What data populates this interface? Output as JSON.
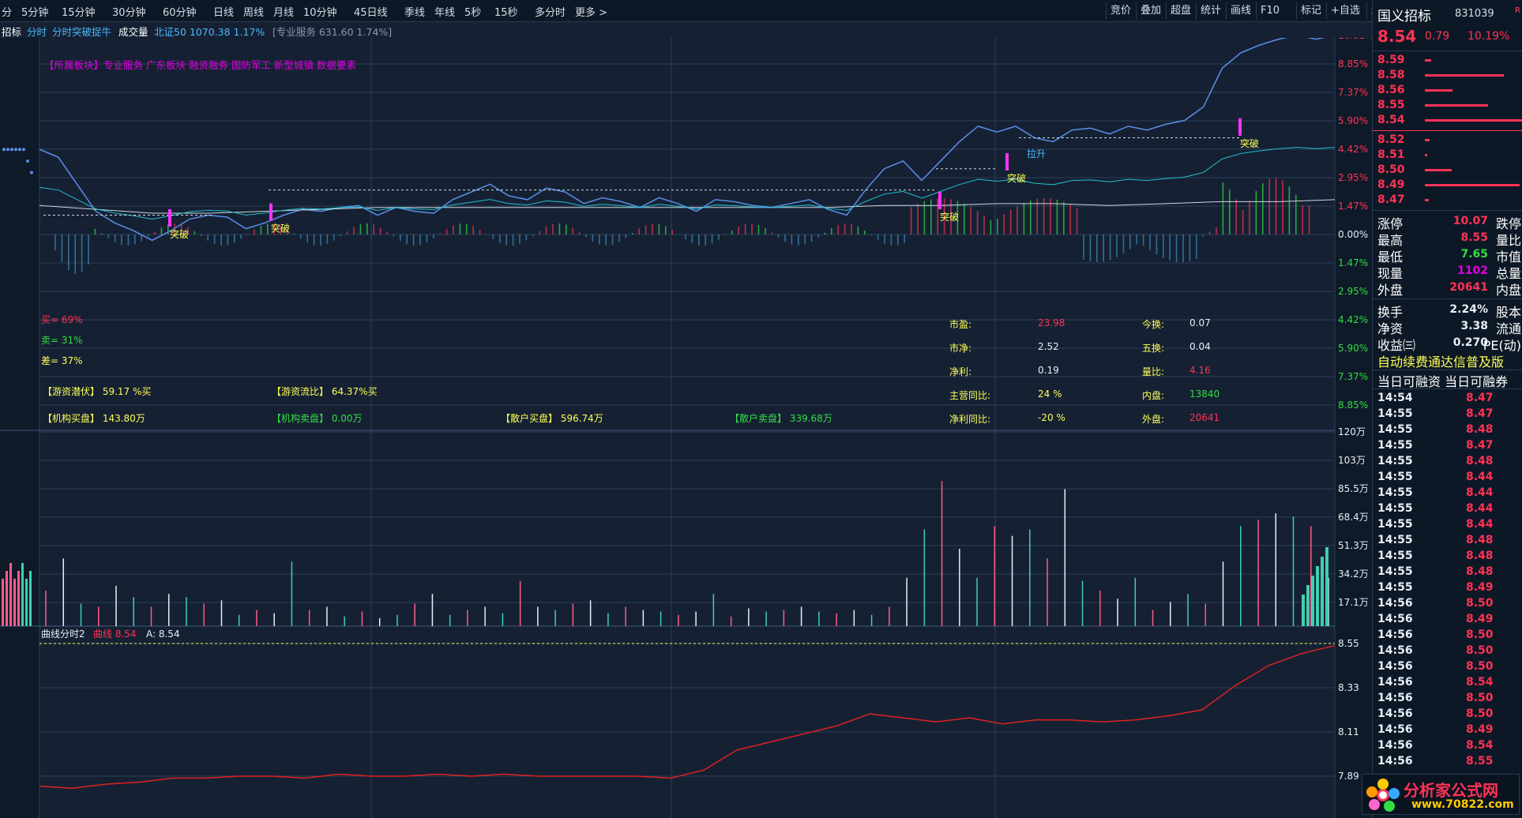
{
  "toolbar": {
    "left": [
      "分",
      "5分钟",
      "15分钟",
      "30分钟",
      "60分钟",
      "日线",
      "周线",
      "月线",
      "10分钟",
      "45日线",
      "季线",
      "年线",
      "5秒",
      "15秒",
      "多分时",
      "更多 >"
    ],
    "right": [
      "竞价",
      "叠加",
      "超盘",
      "统计",
      "画线",
      "F10",
      "标记",
      "+自选",
      "返回"
    ]
  },
  "subheader": {
    "name": "招标",
    "tab1": "分时",
    "tab2": "分时突破捉牛",
    "vol": "成交量",
    "index1": "北证50 1070.38 1.17%",
    "index2": "[专业服务 631.60 1.74%]"
  },
  "sector_line": "【所属板块】专业服务 广东板块 融资融券 国防军工 新型城镇 数据要素",
  "signals": {
    "breakout": "突破",
    "pull": "拉升"
  },
  "ratios": [
    {
      "label": "买= 69%",
      "color": "#ff3355"
    },
    {
      "label": "卖= 31%",
      "color": "#33dd44"
    },
    {
      "label": "差= 37%",
      "color": "#ffff55"
    }
  ],
  "capital": [
    {
      "label": "【游资潜伏】",
      "value": "59.17 %买"
    },
    {
      "label": "【游资流比】",
      "value": "64.37%买"
    }
  ],
  "flows": [
    {
      "label": "【机构买盘】",
      "value": "143.80万",
      "color": "#ffff55"
    },
    {
      "label": "【机构卖盘】",
      "value": "0.00万",
      "color": "#33dd44"
    },
    {
      "label": "【散户买盘】",
      "value": "596.74万",
      "color": "#ffff55"
    },
    {
      "label": "【散户卖盘】",
      "value": "339.68万",
      "color": "#33dd44"
    }
  ],
  "fundamentals": [
    {
      "label": "市盈:",
      "value": "23.98",
      "vcolor": "#ff3355",
      "label2": "今换:",
      "value2": "0.07",
      "v2color": "#e8eef6"
    },
    {
      "label": "市净:",
      "value": "2.52",
      "vcolor": "#e8eef6",
      "label2": "五换:",
      "value2": "0.04",
      "v2color": "#e8eef6"
    },
    {
      "label": "净利:",
      "value": "0.19",
      "vcolor": "#e8eef6",
      "label2": "量比:",
      "value2": "4.16",
      "v2color": "#ff3355"
    },
    {
      "label": "主营同比:",
      "value": "24 %",
      "vcolor": "#ffff55",
      "label2": "内盘:",
      "value2": "13840",
      "v2color": "#33dd44"
    },
    {
      "label": "净利同比:",
      "value": "-20 %",
      "vcolor": "#ffff55",
      "label2": "外盘:",
      "value2": "20641",
      "v2color": "#ff3355"
    }
  ],
  "sub_indicator": {
    "name": "曲线分时2",
    "series_label": "曲线",
    "series_value": "8.54",
    "a_label": "A: 8.54"
  },
  "chart_data": {
    "type": "line",
    "price_axis_right_pct": [
      "10.32%",
      "8.85%",
      "7.37%",
      "5.90%",
      "4.42%",
      "2.95%",
      "1.47%",
      "0.00%",
      "1.47%",
      "2.95%",
      "4.42%",
      "5.90%",
      "7.37%",
      "8.85%"
    ],
    "volume_axis": [
      "120万",
      "103万",
      "85.5万",
      "68.4万",
      "51.3万",
      "34.2万",
      "17.1万"
    ],
    "curve_axis": [
      "8.55",
      "8.33",
      "8.11",
      "7.89"
    ],
    "price_pct_series": [
      4.4,
      4.0,
      2.6,
      1.2,
      0.6,
      0.2,
      -0.3,
      0.2,
      0.8,
      1.0,
      0.9,
      0.3,
      0.6,
      1.0,
      1.3,
      1.2,
      1.4,
      1.5,
      1.0,
      1.4,
      1.2,
      1.1,
      1.8,
      2.2,
      2.6,
      2.0,
      1.8,
      2.4,
      2.2,
      1.6,
      1.9,
      1.7,
      1.4,
      1.9,
      1.6,
      1.2,
      1.8,
      1.7,
      1.5,
      1.4,
      1.6,
      1.8,
      1.3,
      1.0,
      2.3,
      3.4,
      3.8,
      2.8,
      3.8,
      4.8,
      5.6,
      5.3,
      5.6,
      5.0,
      4.8,
      5.4,
      5.5,
      5.2,
      5.6,
      5.4,
      5.7,
      5.9,
      6.6,
      8.6,
      9.4,
      9.8,
      10.1,
      10.3,
      10.1,
      10.3
    ],
    "avg_pct_series": [
      1.5,
      1.3,
      1.1,
      1.1,
      1.2,
      1.3,
      1.4,
      1.4,
      1.4,
      1.4,
      1.4,
      1.4,
      1.4,
      1.4,
      1.4,
      1.5,
      1.5,
      1.6,
      1.6,
      1.5,
      1.6,
      1.7,
      1.7,
      1.8
    ],
    "curve_series": [
      7.84,
      7.83,
      7.85,
      7.86,
      7.88,
      7.88,
      7.89,
      7.89,
      7.88,
      7.9,
      7.89,
      7.89,
      7.9,
      7.89,
      7.9,
      7.89,
      7.89,
      7.89,
      7.89,
      7.88,
      7.92,
      8.02,
      8.06,
      8.1,
      8.14,
      8.2,
      8.18,
      8.16,
      8.18,
      8.15,
      8.17,
      8.17,
      8.16,
      8.17,
      8.19,
      8.22,
      8.34,
      8.44,
      8.5,
      8.54
    ],
    "volume_series": [
      22,
      42,
      14,
      12,
      25,
      18,
      12,
      20,
      18,
      14,
      16,
      7,
      10,
      8,
      40,
      10,
      12,
      6,
      9,
      5,
      7,
      14,
      20,
      7,
      10,
      12,
      8,
      28,
      12,
      10,
      14,
      16,
      8,
      12,
      10,
      9,
      7,
      9,
      20,
      6,
      11,
      9,
      10,
      12,
      9,
      8,
      10,
      7,
      12,
      30,
      60,
      90,
      48,
      30,
      62,
      56,
      60,
      42,
      85,
      28,
      22,
      17,
      30,
      10,
      15,
      20,
      14,
      40,
      62,
      66,
      70,
      68,
      62,
      30
    ],
    "xlim": [
      0,
      240
    ],
    "ylim_pct": [
      -10.32,
      10.32
    ]
  },
  "panel": {
    "name": "国义招标",
    "code": "831039",
    "flag": "R",
    "price": "8.54",
    "change": "0.79",
    "pct": "10.19%",
    "asks": [
      {
        "p": "8.59",
        "w": 8
      },
      {
        "p": "8.58",
        "w": 100
      },
      {
        "p": "8.56",
        "w": 35
      },
      {
        "p": "8.55",
        "w": 80
      },
      {
        "p": "8.54",
        "w": 124
      }
    ],
    "bids": [
      {
        "p": "8.52",
        "w": 6
      },
      {
        "p": "8.51",
        "w": 3
      },
      {
        "p": "8.50",
        "w": 34
      },
      {
        "p": "8.49",
        "w": 120
      },
      {
        "p": "8.47",
        "w": 5
      }
    ],
    "stats": [
      {
        "l": "涨停",
        "v": "10.07",
        "c": "#ff3355",
        "r": "跌停"
      },
      {
        "l": "最高",
        "v": "8.55",
        "c": "#ff3355",
        "r": "量比"
      },
      {
        "l": "最低",
        "v": "7.65",
        "c": "#33dd44",
        "r": "市值"
      },
      {
        "l": "现量",
        "v": "1102",
        "c": "#e000e0",
        "r": "总量"
      },
      {
        "l": "外盘",
        "v": "20641",
        "c": "#ff3355",
        "r": "内盘"
      }
    ],
    "stats2": [
      {
        "l": "换手",
        "v": "2.24%",
        "c": "#e8eef6",
        "r": "股本"
      },
      {
        "l": "净资",
        "v": "3.38",
        "c": "#e8eef6",
        "r": "流通"
      },
      {
        "l": "收益㈢",
        "v": "0.270",
        "c": "#e8eef6",
        "r": "PE(动)"
      }
    ],
    "notice": "自动续费通达信普及版",
    "margin": "当日可融资 当日可融券",
    "ticks": [
      {
        "t": "14:54",
        "p": "8.47"
      },
      {
        "t": "14:55",
        "p": "8.47"
      },
      {
        "t": "14:55",
        "p": "8.48"
      },
      {
        "t": "14:55",
        "p": "8.47"
      },
      {
        "t": "14:55",
        "p": "8.48"
      },
      {
        "t": "14:55",
        "p": "8.44"
      },
      {
        "t": "14:55",
        "p": "8.44"
      },
      {
        "t": "14:55",
        "p": "8.44"
      },
      {
        "t": "14:55",
        "p": "8.44"
      },
      {
        "t": "14:55",
        "p": "8.48"
      },
      {
        "t": "14:55",
        "p": "8.48"
      },
      {
        "t": "14:55",
        "p": "8.48"
      },
      {
        "t": "14:55",
        "p": "8.49"
      },
      {
        "t": "14:56",
        "p": "8.50"
      },
      {
        "t": "14:56",
        "p": "8.49"
      },
      {
        "t": "14:56",
        "p": "8.50"
      },
      {
        "t": "14:56",
        "p": "8.50"
      },
      {
        "t": "14:56",
        "p": "8.50"
      },
      {
        "t": "14:56",
        "p": "8.54"
      },
      {
        "t": "14:56",
        "p": "8.50"
      },
      {
        "t": "14:56",
        "p": "8.50"
      },
      {
        "t": "14:56",
        "p": "8.49"
      },
      {
        "t": "14:56",
        "p": "8.54"
      },
      {
        "t": "14:56",
        "p": "8.55"
      }
    ]
  },
  "logo": {
    "text": "分析家公式网",
    "url": "www.70822.com"
  }
}
